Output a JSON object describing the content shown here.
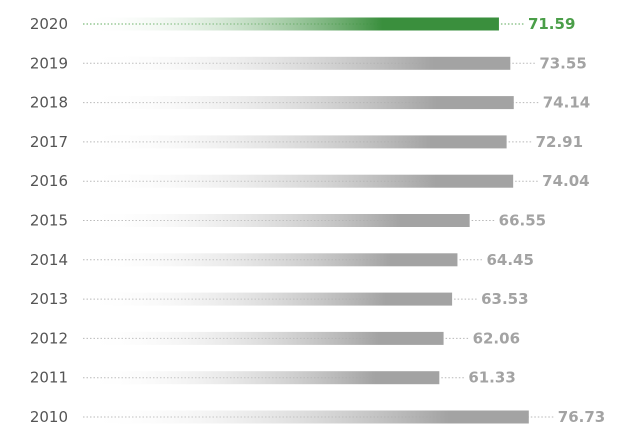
{
  "chart_data": {
    "type": "bar",
    "orientation": "horizontal",
    "categories": [
      "2020",
      "2019",
      "2018",
      "2017",
      "2016",
      "2015",
      "2014",
      "2013",
      "2012",
      "2011",
      "2010"
    ],
    "values": [
      71.59,
      73.55,
      74.14,
      72.91,
      74.04,
      66.55,
      64.45,
      63.53,
      62.06,
      61.33,
      76.73
    ],
    "value_labels": [
      "71.59",
      "73.55",
      "74.14",
      "72.91",
      "74.04",
      "66.55",
      "64.45",
      "63.53",
      "62.06",
      "61.33",
      "76.73"
    ],
    "highlight_category": "2020",
    "colors": {
      "highlight_bar": "#3a8f3d",
      "highlight_fade": "#ffffff",
      "highlight_text": "#4a9e48",
      "bar": "#a3a3a3",
      "bar_fade": "#ffffff",
      "text": "#a3a3a3",
      "leader": "#b8b8b8",
      "highlight_leader": "#5aa957",
      "category_text": "#555555"
    },
    "grid": false,
    "legend": "none"
  }
}
